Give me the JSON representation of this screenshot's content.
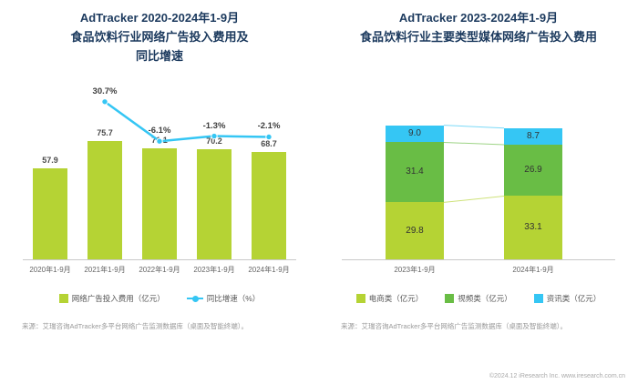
{
  "colors": {
    "title": "#1c3a5e",
    "axis": "#c9c9c9",
    "bar_green": "#b5d334",
    "mid_green": "#69bd45",
    "cyan": "#35c6f4",
    "note_gray": "#999999"
  },
  "chart_data": [
    {
      "id": "left",
      "type": "bar",
      "title_lines": [
        "AdTracker 2020-2024年1-9月",
        "食品饮料行业网络广告投入费用及",
        "同比增速"
      ],
      "categories": [
        "2020年1-9月",
        "2021年1-9月",
        "2022年1-9月",
        "2023年1-9月",
        "2024年1-9月"
      ],
      "ylim": [
        0,
        80
      ],
      "grid": false,
      "legend_position": "bottom",
      "series": [
        {
          "name": "网络广告投入费用（亿元）",
          "kind": "bar",
          "color": "#b5d334",
          "values": [
            57.9,
            75.7,
            71.1,
            70.2,
            68.7
          ]
        },
        {
          "name": "同比增速（%）",
          "kind": "line",
          "color": "#35c6f4",
          "values": [
            null,
            30.7,
            -6.1,
            -1.3,
            -2.1
          ],
          "point_labels": [
            "",
            "30.7%",
            "-6.1%",
            "-1.3%",
            "-2.1%"
          ]
        }
      ]
    },
    {
      "id": "right",
      "type": "stacked-bar",
      "title_lines": [
        "AdTracker 2023-2024年1-9月",
        "食品饮料行业主要类型媒体网络广告投入费用"
      ],
      "categories": [
        "2023年1-9月",
        "2024年1-9月"
      ],
      "grid": false,
      "legend_position": "bottom",
      "series": [
        {
          "name": "电商类（亿元）",
          "color": "#b5d334",
          "values": [
            29.8,
            33.1
          ]
        },
        {
          "name": "视频类（亿元）",
          "color": "#69bd45",
          "values": [
            31.4,
            26.9
          ]
        },
        {
          "name": "资讯类（亿元）",
          "color": "#35c6f4",
          "values": [
            9.0,
            8.7
          ]
        }
      ]
    }
  ],
  "notes": {
    "left": "来源：艾瑞咨询AdTracker多平台网络广告监测数据库（桌面及智能终端）。",
    "right": "来源：艾瑞咨询AdTracker多平台网络广告监测数据库（桌面及智能终端）。"
  },
  "footer": {
    "copyright": "©2024.12 iResearch Inc. www.iresearch.com.cn"
  }
}
